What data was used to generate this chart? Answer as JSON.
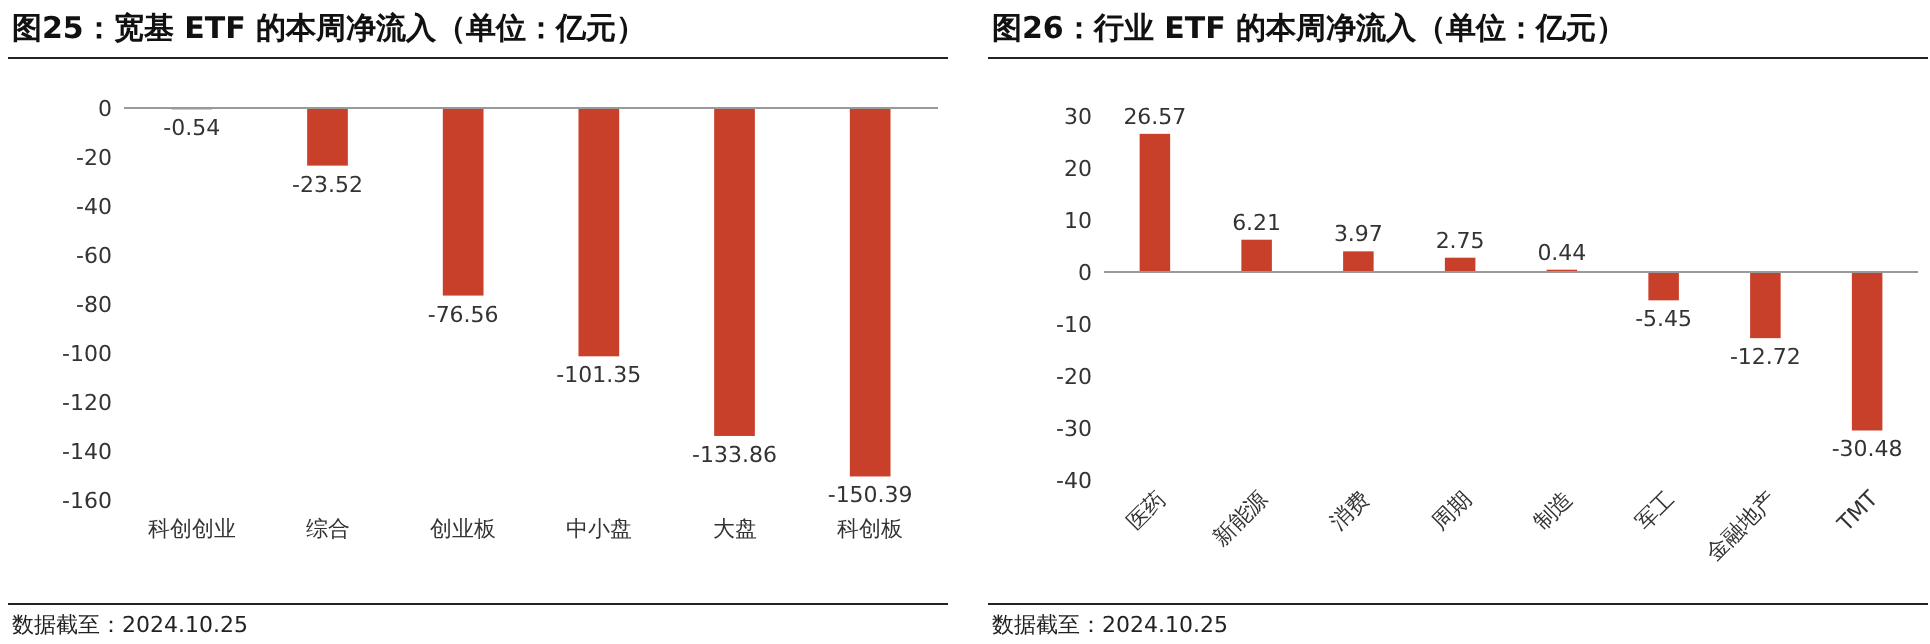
{
  "chart_data": [
    {
      "type": "bar",
      "title": "图25：宽基 ETF 的本周净流入（单位：亿元）",
      "categories": [
        "科创创业",
        "综合",
        "创业板",
        "中小盘",
        "大盘",
        "科创板"
      ],
      "values": [
        -0.54,
        -23.52,
        -76.56,
        -101.35,
        -133.86,
        -150.39
      ],
      "color": "#c8402a",
      "ylim": [
        -160,
        0
      ],
      "yticks": [
        -160,
        -140,
        -120,
        -100,
        -80,
        -60,
        -40,
        -20,
        0
      ],
      "data_labels": true,
      "annotations": [
        "数据截至：2024.10.25"
      ]
    },
    {
      "type": "bar",
      "title": "图26：行业 ETF 的本周净流入（单位：亿元）",
      "categories": [
        "医药",
        "新能源",
        "消费",
        "周期",
        "制造",
        "军工",
        "金融地产",
        "TMT"
      ],
      "values": [
        26.57,
        6.21,
        3.97,
        2.75,
        0.44,
        -5.45,
        -12.72,
        -30.48
      ],
      "color": "#c8402a",
      "ylim": [
        -40,
        30
      ],
      "yticks": [
        -40,
        -30,
        -20,
        -10,
        0,
        10,
        20,
        30
      ],
      "data_labels": true,
      "annotations": [
        "数据截至：2024.10.25"
      ]
    }
  ]
}
